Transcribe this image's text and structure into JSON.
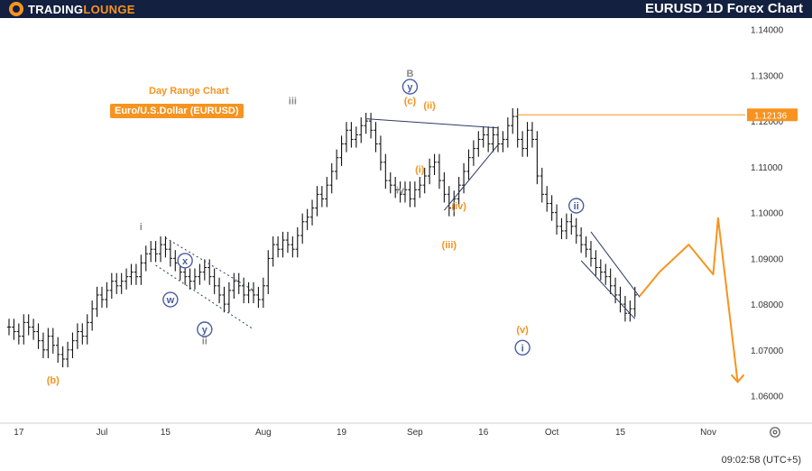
{
  "header": {
    "brand_part1": "TRADING",
    "brand_part2": "LOUNGE",
    "title": "EURUSD 1D Forex Chart"
  },
  "chart_data": {
    "type": "candlestick",
    "subtitle": "Day Range Chart",
    "instrument": "Euro/U.S.Dollar (EURUSD)",
    "last_price": "1.12136",
    "y_ticks": [
      "1.14000",
      "1.13000",
      "1.12000",
      "1.11000",
      "1.10000",
      "1.09000",
      "1.08000",
      "1.07000",
      "1.06000"
    ],
    "y_tick_values": [
      1.14,
      1.13,
      1.12,
      1.11,
      1.1,
      1.09,
      1.08,
      1.07,
      1.06
    ],
    "ylim": [
      1.054,
      1.1425
    ],
    "x_tick_labels": [
      "17",
      "Jul",
      "15",
      "Aug",
      "19",
      "Sep",
      "16",
      "Oct",
      "15",
      "Nov"
    ],
    "x_tick_bar_index": [
      2,
      19,
      32,
      52,
      68,
      83,
      97,
      111,
      125,
      143
    ],
    "closes": [
      1.075,
      1.074,
      1.073,
      1.076,
      1.075,
      1.074,
      1.072,
      1.07,
      1.073,
      1.071,
      1.069,
      1.068,
      1.07,
      1.072,
      1.074,
      1.073,
      1.076,
      1.079,
      1.082,
      1.081,
      1.083,
      1.085,
      1.084,
      1.085,
      1.086,
      1.087,
      1.086,
      1.089,
      1.091,
      1.092,
      1.091,
      1.093,
      1.092,
      1.09,
      1.089,
      1.087,
      1.086,
      1.085,
      1.086,
      1.087,
      1.088,
      1.086,
      1.084,
      1.082,
      1.08,
      1.083,
      1.085,
      1.084,
      1.082,
      1.083,
      1.082,
      1.081,
      1.084,
      1.09,
      1.093,
      1.092,
      1.094,
      1.093,
      1.092,
      1.095,
      1.098,
      1.099,
      1.101,
      1.104,
      1.103,
      1.106,
      1.109,
      1.112,
      1.115,
      1.118,
      1.116,
      1.117,
      1.119,
      1.12,
      1.118,
      1.115,
      1.111,
      1.107,
      1.106,
      1.105,
      1.104,
      1.105,
      1.103,
      1.105,
      1.106,
      1.108,
      1.11,
      1.111,
      1.107,
      1.104,
      1.101,
      1.103,
      1.106,
      1.109,
      1.112,
      1.114,
      1.116,
      1.117,
      1.115,
      1.117,
      1.115,
      1.116,
      1.119,
      1.121,
      1.116,
      1.114,
      1.118,
      1.116,
      1.108,
      1.104,
      1.102,
      1.1,
      1.097,
      1.096,
      1.098,
      1.097,
      1.095,
      1.093,
      1.092,
      1.09,
      1.088,
      1.087,
      1.086,
      1.084,
      1.082,
      1.08,
      1.078,
      1.079,
      1.082
    ],
    "projection": [
      [
        1.0818,
        1.087
      ],
      [
        1.093,
        1.0865
      ],
      [
        1.0988,
        1.063
      ]
    ],
    "wave_labels": [
      {
        "text": "(b)",
        "bar": 9,
        "price": 1.0635,
        "color": "#f7931e",
        "style": "plain"
      },
      {
        "text": "i",
        "bar": 27,
        "price": 1.097,
        "color": "#8a8a8a",
        "style": "plain"
      },
      {
        "text": "x",
        "bar": 36,
        "price": 1.0895,
        "color": "#4a5da3",
        "style": "circle"
      },
      {
        "text": "w",
        "bar": 33,
        "price": 1.081,
        "color": "#4a5da3",
        "style": "circle"
      },
      {
        "text": "y",
        "bar": 40,
        "price": 1.0745,
        "color": "#4a5da3",
        "style": "circle"
      },
      {
        "text": "ii",
        "bar": 40,
        "price": 1.072,
        "color": "#8a8a8a",
        "style": "plain"
      },
      {
        "text": "iii",
        "bar": 58,
        "price": 1.1245,
        "color": "#8a8a8a",
        "style": "plain"
      },
      {
        "text": "iv",
        "bar": 80,
        "price": 1.105,
        "color": "#8a8a8a",
        "style": "plain"
      },
      {
        "text": "B",
        "bar": 82,
        "price": 1.1305,
        "color": "#8a8a8a",
        "style": "plain"
      },
      {
        "text": "y",
        "bar": 82,
        "price": 1.1275,
        "color": "#4a5da3",
        "style": "circle"
      },
      {
        "text": "(c)",
        "bar": 82,
        "price": 1.1245,
        "color": "#f7931e",
        "style": "plain"
      },
      {
        "text": "(ii)",
        "bar": 86,
        "price": 1.1235,
        "color": "#f7931e",
        "style": "plain"
      },
      {
        "text": "(i)",
        "bar": 84,
        "price": 1.1095,
        "color": "#f7931e",
        "style": "plain"
      },
      {
        "text": "(iv)",
        "bar": 92,
        "price": 1.1015,
        "color": "#f7931e",
        "style": "plain"
      },
      {
        "text": "(iii)",
        "bar": 90,
        "price": 1.093,
        "color": "#f7931e",
        "style": "plain"
      },
      {
        "text": "(v)",
        "bar": 105,
        "price": 1.0745,
        "color": "#f7931e",
        "style": "plain"
      },
      {
        "text": "i",
        "bar": 105,
        "price": 1.0705,
        "color": "#4a5da3",
        "style": "circle"
      },
      {
        "text": "ii",
        "bar": 116,
        "price": 1.1015,
        "color": "#4a5da3",
        "style": "circle"
      }
    ]
  },
  "footer": {
    "time": "09:02:58 (UTC+5)"
  },
  "colors": {
    "bar": "#111111",
    "orange": "#f7931e",
    "navy": "#13203f",
    "wave_blue": "#4a5da3",
    "wave_grey": "#8a8a8a",
    "channel": "#2b3a67"
  },
  "icons": {
    "settings": "gear-icon"
  }
}
